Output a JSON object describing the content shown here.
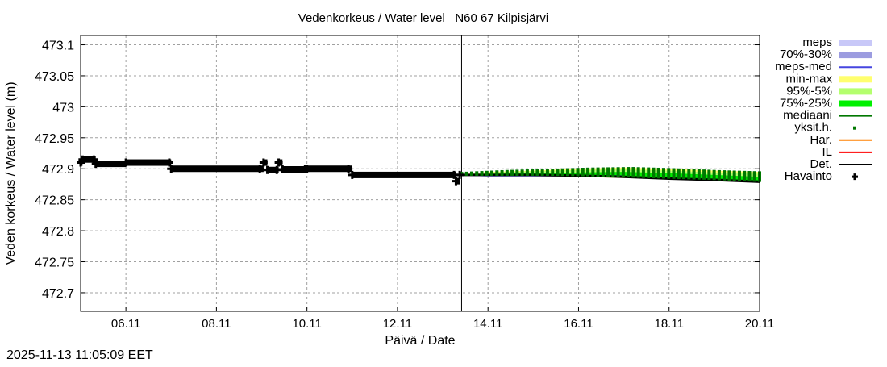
{
  "timestamp": "2025-11-13 11:05:09 EET",
  "chart_data": {
    "type": "line",
    "title": "Vedenkorkeus / Water level   N60 67 Kilpisjärvi",
    "xlabel": "Päivä / Date",
    "ylabel": "Veden korkeus / Water level (m)",
    "xlim": [
      "2025-11-05T00:00",
      "2025-11-20T00:00"
    ],
    "ylim": [
      472.67,
      473.115
    ],
    "grid": true,
    "legend_placement": "right",
    "x_ticks": [
      {
        "label": "06.11",
        "date": "2025-11-06T00:00"
      },
      {
        "label": "08.11",
        "date": "2025-11-08T00:00"
      },
      {
        "label": "10.11",
        "date": "2025-11-10T00:00"
      },
      {
        "label": "12.11",
        "date": "2025-11-12T00:00"
      },
      {
        "label": "14.11",
        "date": "2025-11-14T00:00"
      },
      {
        "label": "16.11",
        "date": "2025-11-16T00:00"
      },
      {
        "label": "18.11",
        "date": "2025-11-18T00:00"
      },
      {
        "label": "20.11",
        "date": "2025-11-20T00:00"
      }
    ],
    "y_ticks": [
      {
        "label": "473.1",
        "value": 473.1
      },
      {
        "label": "473.05",
        "value": 473.05
      },
      {
        "label": "473",
        "value": 473.0
      },
      {
        "label": "472.95",
        "value": 472.95
      },
      {
        "label": "472.9",
        "value": 472.9
      },
      {
        "label": "472.85",
        "value": 472.85
      },
      {
        "label": "472.8",
        "value": 472.8
      },
      {
        "label": "472.75",
        "value": 472.75
      },
      {
        "label": "472.7",
        "value": 472.7
      }
    ],
    "forecast_start": "2025-11-13T10:00",
    "legend": [
      {
        "label": "meps",
        "color": "#c8c8f8",
        "style": "band"
      },
      {
        "label": "70%-30%",
        "color": "#9c9ce0",
        "style": "band"
      },
      {
        "label": "meps-med",
        "color": "#4646e0",
        "style": "line"
      },
      {
        "label": "min-max",
        "color": "#ffff6e",
        "style": "band"
      },
      {
        "label": "95%-5%",
        "color": "#b4ff6e",
        "style": "band"
      },
      {
        "label": "75%-25%",
        "color": "#00f000",
        "style": "band"
      },
      {
        "label": "mediaani",
        "color": "#007800",
        "style": "line"
      },
      {
        "label": "yksit.h.",
        "color": "#007800",
        "style": "point"
      },
      {
        "label": "Har.",
        "color": "#ff8000",
        "style": "line"
      },
      {
        "label": "IL",
        "color": "#ff0000",
        "style": "line"
      },
      {
        "label": "Det.",
        "color": "#000000",
        "style": "line"
      },
      {
        "label": "Havainto",
        "color": "#000000",
        "style": "plus"
      }
    ],
    "observations": [
      [
        "2025-11-05T00:00",
        472.91
      ],
      [
        "2025-11-05T01:00",
        472.915
      ],
      [
        "2025-11-05T07:00",
        472.915
      ],
      [
        "2025-11-05T08:00",
        472.908
      ],
      [
        "2025-11-06T00:00",
        472.91
      ],
      [
        "2025-11-06T23:00",
        472.91
      ],
      [
        "2025-11-07T00:00",
        472.9
      ],
      [
        "2025-11-08T23:00",
        472.9
      ],
      [
        "2025-11-09T01:00",
        472.91
      ],
      [
        "2025-11-09T03:00",
        472.898
      ],
      [
        "2025-11-09T08:00",
        472.898
      ],
      [
        "2025-11-09T09:00",
        472.91
      ],
      [
        "2025-11-09T11:00",
        472.899
      ],
      [
        "2025-11-09T23:00",
        472.899
      ],
      [
        "2025-11-10T00:00",
        472.9
      ],
      [
        "2025-11-10T22:00",
        472.9
      ],
      [
        "2025-11-11T00:00",
        472.89
      ],
      [
        "2025-11-13T06:00",
        472.89
      ],
      [
        "2025-11-13T07:00",
        472.88
      ],
      [
        "2025-11-13T09:00",
        472.89
      ]
    ],
    "forecast": {
      "dates": [
        "2025-11-13T10:00",
        "2025-11-14T00:00",
        "2025-11-15T00:00",
        "2025-11-16T00:00",
        "2025-11-17T00:00",
        "2025-11-18T00:00",
        "2025-11-19T00:00",
        "2025-11-20T00:00"
      ],
      "meps_min": [
        472.889,
        472.888,
        472.888,
        472.887,
        472.887,
        null,
        null,
        null
      ],
      "meps_max": [
        472.891,
        472.891,
        472.891,
        472.891,
        472.89,
        null,
        null,
        null
      ],
      "meps_med": [
        472.89,
        472.889,
        472.889,
        472.889,
        472.888,
        null,
        null,
        null
      ],
      "min": [
        472.889,
        472.888,
        472.888,
        472.887,
        472.885,
        472.883,
        472.88,
        472.878
      ],
      "max": [
        472.891,
        472.895,
        472.897,
        472.9,
        472.902,
        472.9,
        472.897,
        472.895
      ],
      "p5": [
        472.889,
        472.889,
        472.889,
        472.888,
        472.886,
        472.884,
        472.882,
        472.879
      ],
      "p95": [
        472.891,
        472.894,
        472.896,
        472.898,
        472.899,
        472.897,
        472.894,
        472.892
      ],
      "p25": [
        472.889,
        472.889,
        472.89,
        472.889,
        472.887,
        472.885,
        472.883,
        472.88
      ],
      "p75": [
        472.89,
        472.892,
        472.893,
        472.894,
        472.895,
        472.893,
        472.89,
        472.887
      ],
      "median": [
        472.89,
        472.89,
        472.89,
        472.889,
        472.887,
        472.885,
        472.883,
        472.88
      ],
      "det": [
        472.89,
        472.89,
        472.89,
        472.889,
        472.887,
        472.884,
        472.882,
        472.879
      ]
    }
  }
}
